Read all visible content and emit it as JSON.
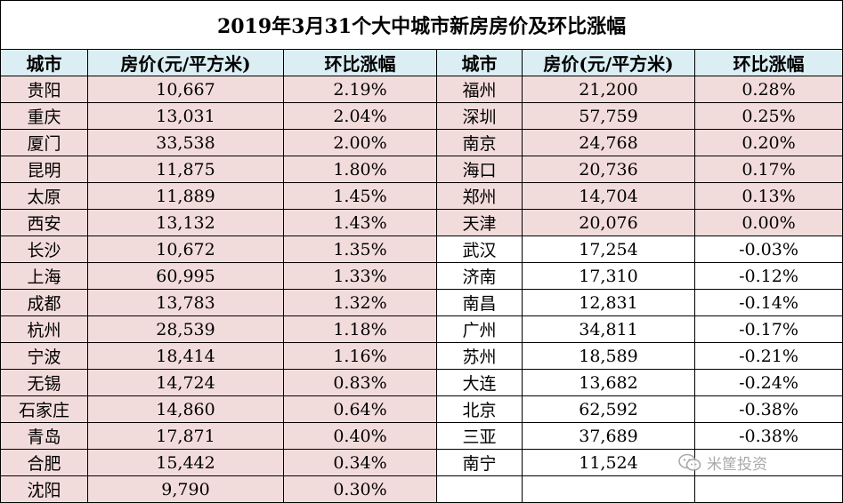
{
  "title": "2019年3月31个大中城市新房房价及环比涨幅",
  "headers": [
    "城市",
    "房价(元/平方米)",
    "环比涨幅",
    "城市",
    "房价(元/平方米)",
    "环比涨幅"
  ],
  "left_rows": [
    {
      "city": "贵阳",
      "price": "10,667",
      "change": "2.19%"
    },
    {
      "city": "重庆",
      "price": "13,031",
      "change": "2.04%"
    },
    {
      "city": "厦门",
      "price": "33,538",
      "change": "2.00%"
    },
    {
      "city": "昆明",
      "price": "11,875",
      "change": "1.80%"
    },
    {
      "city": "太原",
      "price": "11,889",
      "change": "1.45%"
    },
    {
      "city": "西安",
      "price": "13,132",
      "change": "1.43%"
    },
    {
      "city": "长沙",
      "price": "10,672",
      "change": "1.35%"
    },
    {
      "city": "上海",
      "price": "60,995",
      "change": "1.33%"
    },
    {
      "city": "成都",
      "price": "13,783",
      "change": "1.32%"
    },
    {
      "city": "杭州",
      "price": "28,539",
      "change": "1.18%"
    },
    {
      "city": "宁波",
      "price": "18,414",
      "change": "1.16%"
    },
    {
      "city": "无锡",
      "price": "14,724",
      "change": "0.83%"
    },
    {
      "city": "石家庄",
      "price": "14,860",
      "change": "0.64%"
    },
    {
      "city": "青岛",
      "price": "17,871",
      "change": "0.40%"
    },
    {
      "city": "合肥",
      "price": "15,442",
      "change": "0.34%"
    },
    {
      "city": "沈阳",
      "price": "9,790",
      "change": "0.30%"
    }
  ],
  "right_rows": [
    {
      "city": "福州",
      "price": "21,200",
      "change": "0.28%"
    },
    {
      "city": "深圳",
      "price": "57,759",
      "change": "0.25%"
    },
    {
      "city": "南京",
      "price": "24,768",
      "change": "0.20%"
    },
    {
      "city": "海口",
      "price": "20,736",
      "change": "0.17%"
    },
    {
      "city": "郑州",
      "price": "14,704",
      "change": "0.13%"
    },
    {
      "city": "天津",
      "price": "20,076",
      "change": "0.00%"
    },
    {
      "city": "武汉",
      "price": "17,254",
      "change": "-0.03%"
    },
    {
      "city": "济南",
      "price": "17,310",
      "change": "-0.12%"
    },
    {
      "city": "南昌",
      "price": "12,831",
      "change": "-0.14%"
    },
    {
      "city": "广州",
      "price": "34,811",
      "change": "-0.17%"
    },
    {
      "city": "苏州",
      "price": "18,589",
      "change": "-0.21%"
    },
    {
      "city": "大连",
      "price": "13,682",
      "change": "-0.24%"
    },
    {
      "city": "北京",
      "price": "62,592",
      "change": "-0.38%"
    },
    {
      "city": "三亚",
      "price": "37,689",
      "change": "-0.38%"
    },
    {
      "city": "南宁",
      "price": "11,524",
      "change": ""
    },
    {
      "city": "",
      "price": "",
      "change": ""
    }
  ],
  "watermark": {
    "text": "米筐投资",
    "icon": "wechat-icon"
  },
  "colors": {
    "header_bg": "#daeef3",
    "positive_bg": "#f2dcdb",
    "neutral_bg": "#ffffff"
  }
}
